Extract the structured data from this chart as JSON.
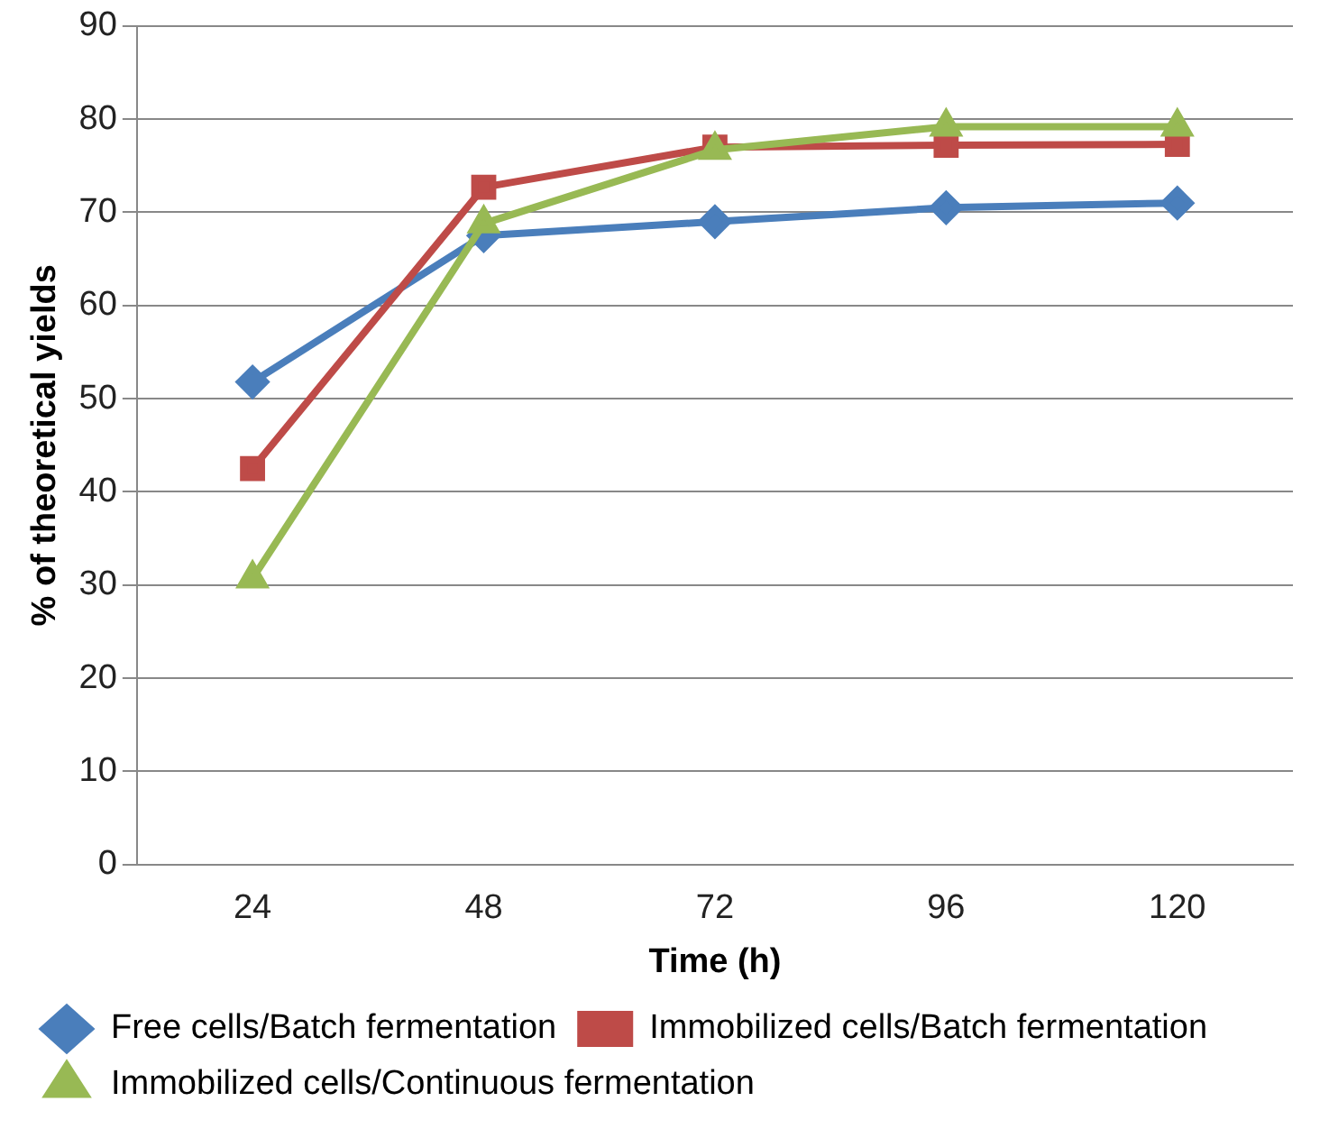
{
  "chart_data": {
    "type": "line",
    "xlabel": "Time (h)",
    "ylabel": "% of theoretical yields",
    "categories": [
      "24",
      "48",
      "72",
      "96",
      "120"
    ],
    "ylim": [
      0,
      90
    ],
    "yticks": [
      0,
      10,
      20,
      30,
      40,
      50,
      60,
      70,
      80,
      90
    ],
    "grid": "y",
    "legend": "bottom",
    "series": [
      {
        "name": "Free cells/Batch fermentation",
        "color": "#4a7ebb",
        "marker": "diamond",
        "values": [
          51.8,
          67.5,
          69,
          70.5,
          71
        ]
      },
      {
        "name": "Immobilized cells/Batch fermentation",
        "color": "#be4b48",
        "marker": "square",
        "values": [
          42.5,
          72.7,
          77,
          77.2,
          77.3
        ]
      },
      {
        "name": "Immobilized cells/Continuous fermentation",
        "color": "#98b954",
        "marker": "triangle",
        "values": [
          30.7,
          68.8,
          76.7,
          79.2,
          79.2
        ]
      }
    ]
  }
}
